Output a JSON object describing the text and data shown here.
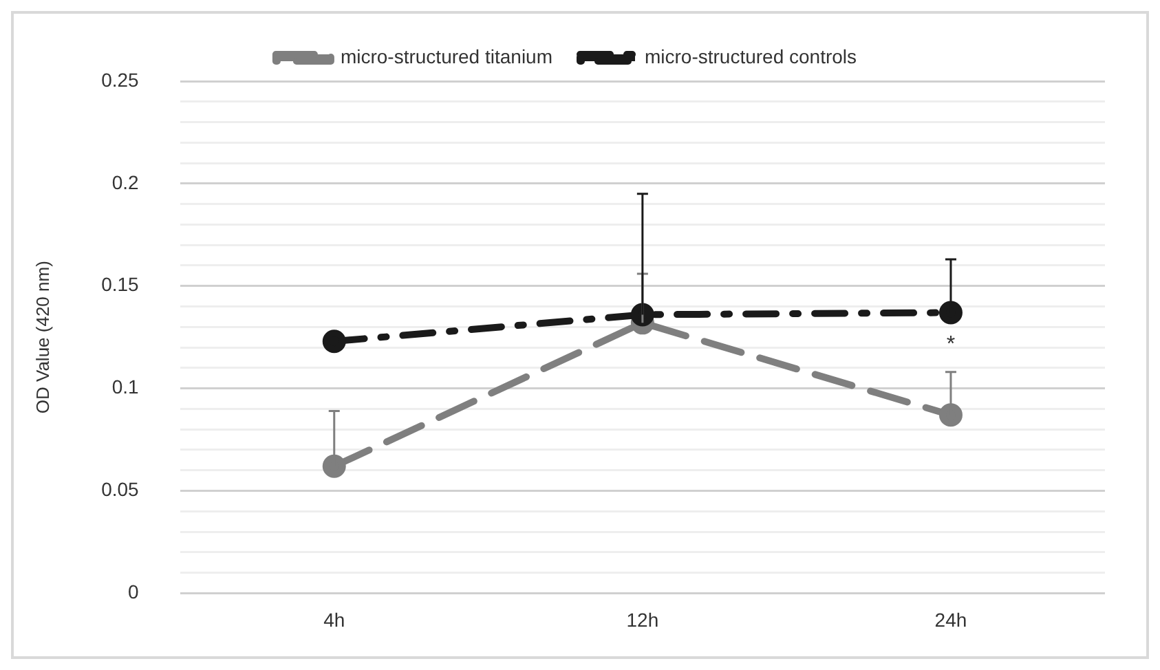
{
  "chart_data": {
    "type": "line",
    "ylabel": "OD Value (420 nm)",
    "categories": [
      "4h",
      "12h",
      "24h"
    ],
    "series": [
      {
        "name": "micro-structured titanium",
        "color": "#7f7f7f",
        "values": [
          0.062,
          0.132,
          0.087
        ],
        "errors": [
          [
            0.062,
            0.089
          ],
          [
            0.132,
            0.156
          ],
          [
            0.087,
            0.108
          ]
        ],
        "line_style": "dashed"
      },
      {
        "name": "micro-structured controls",
        "color": "#1a1a1a",
        "values": [
          0.123,
          0.136,
          0.137
        ],
        "errors": [
          null,
          [
            0.136,
            0.195
          ],
          [
            0.137,
            0.163
          ]
        ],
        "line_style": "dashdot"
      }
    ],
    "ylim": [
      0,
      0.25
    ],
    "yticks": [
      0,
      {
        "value": 0.01,
        "label": null
      },
      {
        "value": 0.02,
        "label": null
      },
      {
        "value": 0.03,
        "label": null
      },
      {
        "value": 0.04,
        "label": null
      },
      0.05,
      {
        "value": 0.06,
        "label": null
      },
      {
        "value": 0.07,
        "label": null
      },
      {
        "value": 0.08,
        "label": null
      },
      {
        "value": 0.09,
        "label": null
      },
      0.1,
      {
        "value": 0.11,
        "label": null
      },
      {
        "value": 0.12,
        "label": null
      },
      {
        "value": 0.13,
        "label": null
      },
      {
        "value": 0.14,
        "label": null
      },
      0.15,
      {
        "value": 0.16,
        "label": null
      },
      {
        "value": 0.17,
        "label": null
      },
      {
        "value": 0.18,
        "label": null
      },
      {
        "value": 0.19,
        "label": null
      },
      0.2,
      {
        "value": 0.21,
        "label": null
      },
      {
        "value": 0.22,
        "label": null
      },
      {
        "value": 0.23,
        "label": null
      },
      {
        "value": 0.24,
        "label": null
      },
      0.25
    ],
    "annotations": [
      "*"
    ],
    "grid": "y",
    "legend": "top",
    "marker": "circle"
  }
}
